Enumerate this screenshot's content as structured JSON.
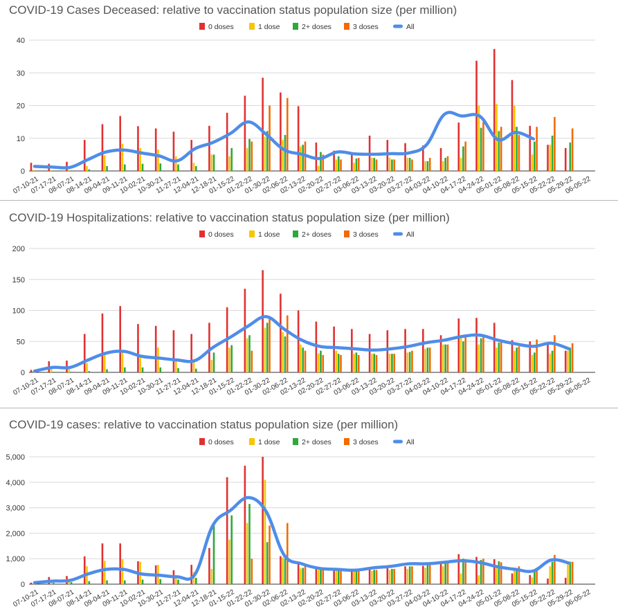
{
  "series_colors": {
    "0 doses": "#e03131",
    "1 dose": "#f7c600",
    "2+ doses": "#2ea83a",
    "3 doses": "#f26b00",
    "All": "#4f8de8"
  },
  "chart_data": [
    {
      "type": "bar",
      "title": "COVID-19 Cases Deceased: relative to vaccination status population size (per million)",
      "xlabel": "",
      "ylabel": "",
      "ylim": [
        0,
        40
      ],
      "yticks": [
        0,
        10,
        20,
        30,
        40
      ],
      "ytick_labels": [
        "0",
        "10",
        "20",
        "30",
        "40"
      ],
      "legend": [
        "0 doses",
        "1 dose",
        "2+ doses",
        "3 doses",
        "All"
      ],
      "categories": [
        "07-10-21",
        "07-17-21",
        "08-07-21",
        "08-14-21",
        "09-04-21",
        "09-11-21",
        "10-02-21",
        "10-30-21",
        "11-27-21",
        "12-04-21",
        "12-18-21",
        "01-15-22",
        "01-22-22",
        "01-30-22",
        "02-06-22",
        "02-13-22",
        "02-20-22",
        "02-27-22",
        "03-06-22",
        "03-13-22",
        "03-20-22",
        "03-27-22",
        "04-03-22",
        "04-10-22",
        "04-17-22",
        "04-24-22",
        "05-01-22",
        "05-08-22",
        "05-15-22",
        "05-22-22",
        "05-29-22",
        "06-05-22"
      ],
      "series": [
        {
          "name": "0 doses",
          "values": [
            2.5,
            2.2,
            2.8,
            9.5,
            14.3,
            16.8,
            13.7,
            13,
            12,
            9.5,
            13.8,
            17.8,
            23,
            28.5,
            24,
            19.8,
            8.7,
            6.2,
            5,
            10.8,
            9.5,
            8.5,
            7.8,
            7,
            14.8,
            33.7,
            37.3,
            27.8,
            13.8,
            8,
            7,
            null
          ]
        },
        {
          "name": "1 dose",
          "values": [
            0.3,
            0.3,
            0.3,
            1.5,
            4.8,
            8.3,
            7,
            6.5,
            4.5,
            2.5,
            5,
            4.5,
            7,
            10.5,
            9.5,
            7.5,
            1.5,
            3.5,
            2.5,
            4,
            4,
            4,
            3,
            3,
            4,
            20,
            20.5,
            20,
            5,
            8,
            null,
            null
          ]
        },
        {
          "name": "2+ doses",
          "values": [
            0,
            0,
            0,
            0.5,
            1.5,
            2,
            2.2,
            2.3,
            2,
            1.5,
            5,
            7,
            9.8,
            12.2,
            11,
            8,
            5.8,
            4.5,
            3.8,
            4,
            3.5,
            4,
            3,
            4,
            7.5,
            13.2,
            12.2,
            13.5,
            9,
            10.8,
            8.7,
            null
          ]
        },
        {
          "name": "3 doses",
          "values": [
            null,
            null,
            null,
            null,
            null,
            null,
            null,
            null,
            null,
            null,
            null,
            null,
            9,
            20,
            22.3,
            9,
            5,
            3.5,
            4,
            3.5,
            3.5,
            3.5,
            4,
            4.5,
            9,
            15,
            13.5,
            11,
            13.5,
            16.5,
            13,
            null
          ]
        },
        {
          "name": "All",
          "values": [
            1.4,
            1.2,
            1.1,
            3.5,
            5.8,
            6.4,
            5.5,
            4.6,
            3.1,
            6.8,
            8.7,
            11.5,
            15,
            11.2,
            6.5,
            5.1,
            3.8,
            5.8,
            5.2,
            5.1,
            5.3,
            5.5,
            8,
            17.3,
            16.8,
            16.7,
            9.6,
            11.8,
            9.8,
            null,
            null,
            null
          ]
        }
      ]
    },
    {
      "type": "bar",
      "title": "COVID-19 Hospitalizations: relative to vaccination status population size (per million)",
      "xlabel": "",
      "ylabel": "",
      "ylim": [
        0,
        200
      ],
      "yticks": [
        0,
        50,
        100,
        150,
        200
      ],
      "ytick_labels": [
        "0",
        "50",
        "100",
        "150",
        "200"
      ],
      "legend": [
        "0 doses",
        "1 dose",
        "2+ doses",
        "3 doses",
        "All"
      ],
      "categories": [
        "07-10-21",
        "07-17-21",
        "08-07-21",
        "08-14-21",
        "09-04-21",
        "09-11-21",
        "10-02-21",
        "10-30-21",
        "11-27-21",
        "12-04-21",
        "12-18-21",
        "01-15-22",
        "01-22-22",
        "01-30-22",
        "02-06-22",
        "02-13-22",
        "02-20-22",
        "02-27-22",
        "03-06-22",
        "03-13-22",
        "03-20-22",
        "03-27-22",
        "04-03-22",
        "04-10-22",
        "04-17-22",
        "04-24-22",
        "05-01-22",
        "05-08-22",
        "05-15-22",
        "05-22-22",
        "05-29-22",
        "06-05-22"
      ],
      "series": [
        {
          "name": "0 doses",
          "values": [
            4,
            18,
            19,
            62,
            95,
            107,
            78,
            75,
            68,
            62,
            80,
            105,
            135,
            165,
            127,
            100,
            82,
            74,
            70,
            62,
            68,
            70,
            70,
            60,
            87,
            88,
            80,
            52,
            50,
            48,
            35,
            null
          ]
        },
        {
          "name": "1 dose",
          "values": [
            2,
            5,
            5,
            15,
            30,
            35,
            28,
            40,
            20,
            18,
            20,
            40,
            55,
            72,
            65,
            45,
            30,
            35,
            30,
            30,
            30,
            32,
            38,
            45,
            55,
            45,
            40,
            35,
            28,
            30,
            35,
            null
          ]
        },
        {
          "name": "2+ doses",
          "values": [
            0,
            1,
            1,
            2,
            5,
            8,
            8,
            8,
            7,
            6,
            32,
            44,
            60,
            80,
            58,
            40,
            35,
            30,
            32,
            30,
            30,
            33,
            40,
            45,
            50,
            55,
            48,
            40,
            32,
            35,
            40,
            null
          ]
        },
        {
          "name": "3 doses",
          "values": [
            null,
            null,
            null,
            null,
            null,
            null,
            null,
            null,
            null,
            null,
            null,
            null,
            35,
            90,
            92,
            35,
            28,
            28,
            28,
            28,
            30,
            35,
            40,
            45,
            60,
            60,
            50,
            42,
            53,
            60,
            47,
            null
          ]
        },
        {
          "name": "All",
          "values": [
            2,
            8,
            8,
            20,
            31,
            34,
            26,
            23,
            20,
            19,
            40,
            57,
            75,
            90,
            70,
            52,
            42,
            40,
            38,
            36,
            38,
            42,
            48,
            52,
            58,
            60,
            52,
            46,
            42,
            47,
            38,
            null
          ]
        }
      ]
    },
    {
      "type": "bar",
      "title": "COVID-19 cases: relative to vaccination status population size (per million)",
      "xlabel": "",
      "ylabel": "",
      "ylim": [
        0,
        5000
      ],
      "yticks": [
        0,
        1000,
        2000,
        3000,
        4000,
        5000
      ],
      "ytick_labels": [
        "0",
        "1,000",
        "2,000",
        "3,000",
        "4,000",
        "5,000"
      ],
      "legend": [
        "0 doses",
        "1 dose",
        "2+ doses",
        "3 doses",
        "All"
      ],
      "categories": [
        "07-10-21",
        "07-17-21",
        "08-07-21",
        "08-14-21",
        "09-04-21",
        "09-11-21",
        "10-02-21",
        "10-30-21",
        "11-27-21",
        "12-04-21",
        "12-18-21",
        "01-15-22",
        "01-22-22",
        "01-30-22",
        "02-06-22",
        "02-13-22",
        "02-20-22",
        "02-27-22",
        "03-06-22",
        "03-13-22",
        "03-20-22",
        "03-27-22",
        "04-03-22",
        "04-10-22",
        "04-17-22",
        "04-24-22",
        "05-01-22",
        "05-08-22",
        "05-15-22",
        "05-22-22",
        "05-29-22",
        "06-05-22"
      ],
      "series": [
        {
          "name": "0 doses",
          "values": [
            60,
            280,
            320,
            1090,
            1600,
            1600,
            900,
            740,
            550,
            760,
            1420,
            4200,
            4650,
            5000,
            1100,
            800,
            600,
            560,
            520,
            580,
            650,
            700,
            720,
            900,
            1180,
            1070,
            980,
            420,
            360,
            220,
            250,
            null
          ]
        },
        {
          "name": "1 dose",
          "values": [
            20,
            150,
            200,
            700,
            920,
            980,
            880,
            760,
            350,
            480,
            600,
            1750,
            2400,
            4100,
            1050,
            620,
            560,
            540,
            500,
            520,
            560,
            600,
            640,
            700,
            420,
            350,
            620,
            560,
            260,
            700,
            820,
            null
          ]
        },
        {
          "name": "2+ doses",
          "values": [
            5,
            50,
            80,
            120,
            150,
            150,
            180,
            200,
            180,
            250,
            2300,
            2700,
            3150,
            1650,
            1000,
            640,
            600,
            520,
            500,
            560,
            600,
            700,
            760,
            840,
            1000,
            950,
            900,
            580,
            500,
            880,
            880,
            null
          ]
        },
        {
          "name": "3 doses",
          "values": [
            null,
            null,
            null,
            null,
            null,
            null,
            null,
            null,
            null,
            null,
            null,
            null,
            1000,
            2300,
            2400,
            740,
            640,
            540,
            520,
            560,
            600,
            700,
            780,
            880,
            980,
            1000,
            860,
            700,
            640,
            1150,
            880,
            null
          ]
        },
        {
          "name": "All",
          "values": [
            60,
            120,
            150,
            400,
            580,
            580,
            400,
            350,
            290,
            380,
            2300,
            2900,
            3400,
            2850,
            1150,
            800,
            620,
            580,
            550,
            640,
            700,
            800,
            800,
            860,
            920,
            850,
            680,
            580,
            520,
            950,
            830,
            null
          ]
        }
      ]
    }
  ]
}
